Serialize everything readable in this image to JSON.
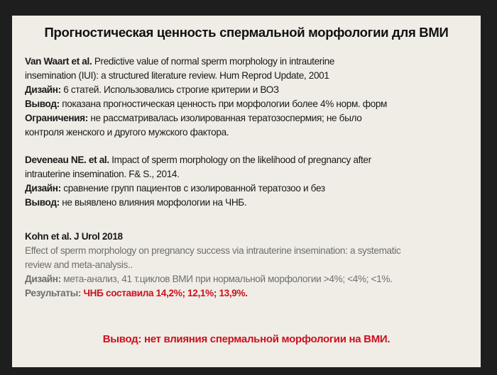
{
  "title": "Прогностическая ценность спермальной морфологии для ВМИ",
  "study1": {
    "authors": "Van Waart et al.",
    "ref_line1": "Predictive value of normal sperm morphology in intrauterine",
    "ref_line2": "insemination (IUI): a structured literature review. Hum Reprod Update, 2001",
    "design_label": "Дизайн:",
    "design": "6 статей. Использовались строгие критерии и ВОЗ",
    "conclusion_label": "Вывод:",
    "conclusion": "показана прогностическая ценность при морфологии более 4% норм. форм",
    "limits_label": "Ограничения:",
    "limits_line1": "не рассматривалась изолированная тератозоспермия; не было",
    "limits_line2": "контроля женского и другого мужского фактора."
  },
  "study2": {
    "authors": "Deveneau NE. et al.",
    "ref_line1": "Impact of sperm morphology on the likelihood of pregnancy after",
    "ref_line2": "intrauterine insemination. F& S., 2014.",
    "design_label": "Дизайн:",
    "design": "сравнение групп пациентов с изолированной тератозоо и без",
    "conclusion_label": "Вывод:",
    "conclusion": "не выявлено влияния морфологии на ЧНБ."
  },
  "study3": {
    "authors": "Kohn  et al. J Urol  2018",
    "ref_line1": "Effect of sperm morphology on pregnancy success via intrauterine insemination: a systematic",
    "ref_line2": "review and meta-analysis..",
    "design_label": "Дизайн:",
    "design": "мета-анализ, 41 т.циклов ВМИ при нормальной морфологии  >4%;  <4%;  <1%.",
    "results_label": "Результаты:",
    "results": "ЧНБ составила 14,2%; 12,1%; 13,9%."
  },
  "final_conclusion": "Вывод: нет влияния спермальной морфологии на ВМИ.",
  "colors": {
    "background": "#1e1e1e",
    "slide": "#efede5",
    "accent_red": "#cc1020",
    "gray_text": "#6e6e6e"
  }
}
